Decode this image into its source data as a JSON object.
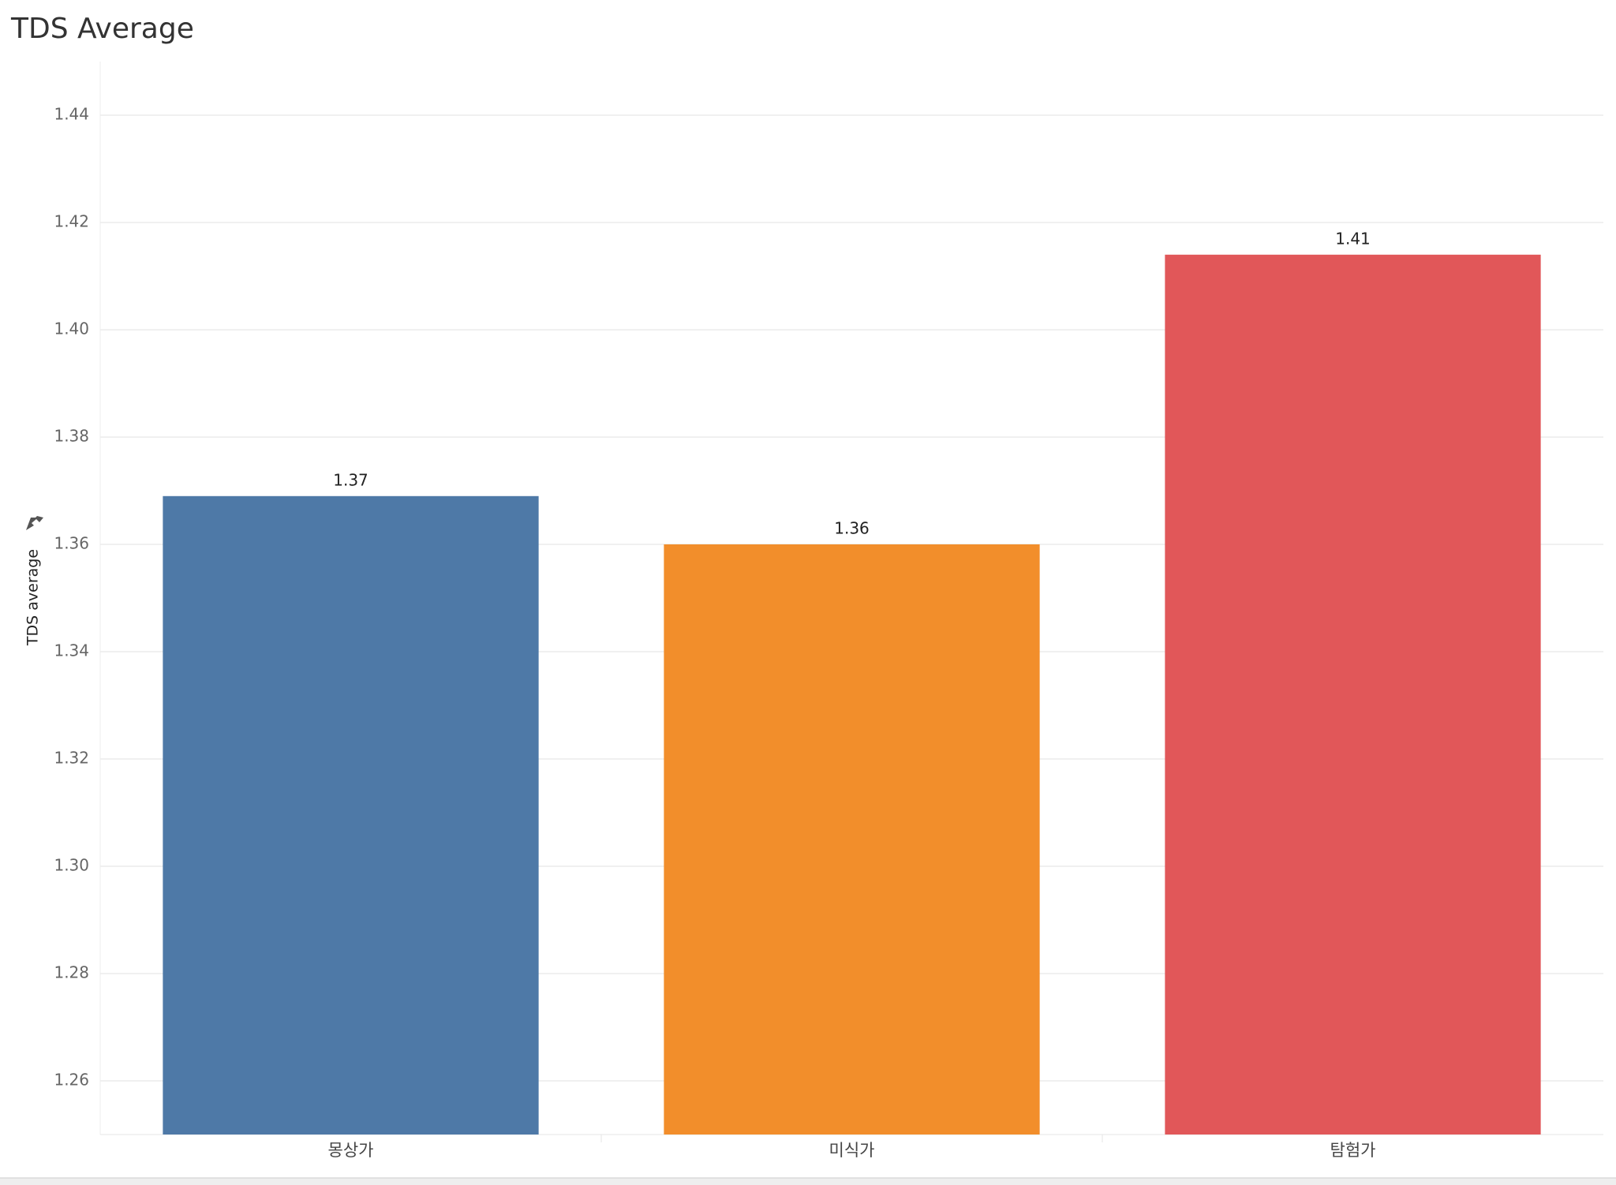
{
  "chart_data": {
    "type": "bar",
    "title": "TDS Average",
    "y_label": "TDS average",
    "categories": [
      "몽상가",
      "미식가",
      "탐험가"
    ],
    "values": [
      1.369,
      1.36,
      1.414
    ],
    "value_labels": [
      "1.37",
      "1.36",
      "1.41"
    ],
    "colors": [
      "#4e79a7",
      "#f28e2b",
      "#e15759"
    ],
    "ylim": [
      1.25,
      1.45
    ],
    "yticks": [
      1.26,
      1.28,
      {
        "value": 1.3,
        "label": "1.30"
      },
      1.32,
      1.34,
      1.36,
      1.38,
      {
        "value": 1.4,
        "label": "1.40"
      },
      1.42,
      1.44
    ],
    "grid": true
  }
}
